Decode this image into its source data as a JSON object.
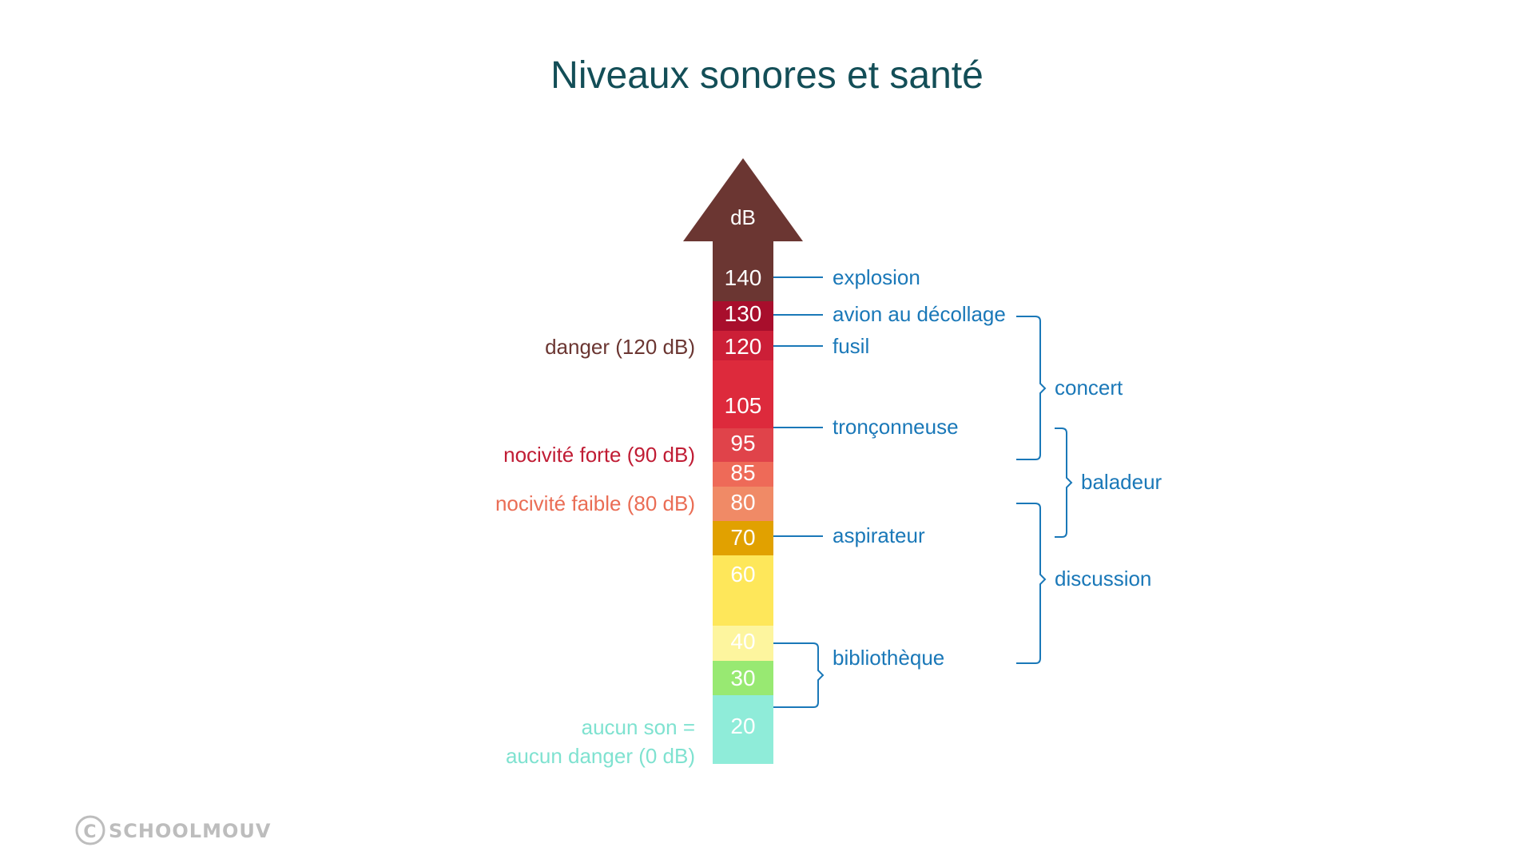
{
  "title": "Niveaux sonores et santé",
  "arrow_label": "dB",
  "colors": {
    "title": "#134e57",
    "blue": "#1a78b8",
    "arrow_head": "#6b3632",
    "danger": "#6b3632",
    "nocivite_forte": "#c01c34",
    "nocivite_faible": "#ea6d55",
    "aucun_danger": "#7fe2d0",
    "logo": "#bdbdbd"
  },
  "scale": [
    {
      "label": "140",
      "color": "#6b3632"
    },
    {
      "label": "130",
      "color": "#a80e2c"
    },
    {
      "label": "120",
      "color": "#cc1f37"
    },
    {
      "label": "105",
      "color": "#dd2a3c"
    },
    {
      "label": "95",
      "color": "#e0434a"
    },
    {
      "label": "85",
      "color": "#ee6a58"
    },
    {
      "label": "80",
      "color": "#f08a66"
    },
    {
      "label": "70",
      "color": "#e1a100"
    },
    {
      "label": "60",
      "color": "#fee75a"
    },
    {
      "label": "40",
      "color": "#fdf59e"
    },
    {
      "label": "30",
      "color": "#98e972"
    },
    {
      "label": "20",
      "color": "#8fecd9"
    }
  ],
  "thresholds": {
    "danger": "danger (120 dB)",
    "nocivite_forte": "nocivité forte (90 dB)",
    "nocivite_faible": "nocivité faible (80 dB)",
    "aucun_line1": "aucun son =",
    "aucun_line2": "aucun danger (0 dB)"
  },
  "sources": {
    "explosion": "explosion",
    "avion": "avion au décollage",
    "fusil": "fusil",
    "tronconneuse": "tronçonneuse",
    "aspirateur": "aspirateur",
    "bibliotheque": "bibliothèque"
  },
  "ranges": {
    "concert": "concert",
    "baladeur": "baladeur",
    "discussion": "discussion"
  },
  "logo": "SCHOOLMOUV"
}
